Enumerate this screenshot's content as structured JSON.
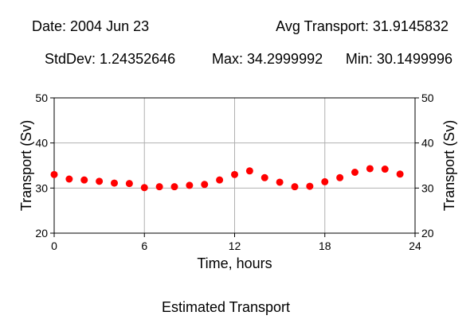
{
  "header": {
    "date": "Date: 2004 Jun 23",
    "avg": "Avg Transport: 31.9145832",
    "stddev": "StdDev: 1.24352646",
    "max": "Max: 34.2999992",
    "min": "Min: 30.1499996"
  },
  "caption": "Estimated Transport",
  "colors": {
    "points": "#ff0000",
    "grid": "#b0b0b0",
    "axes": "#000000"
  },
  "chart_data": {
    "type": "scatter",
    "title": "",
    "xlabel": "Time, hours",
    "ylabel": "Transport (Sv)",
    "ylabel_right": "Transport (Sv)",
    "xlim": [
      0,
      24
    ],
    "ylim": [
      20,
      50
    ],
    "x_ticks": [
      "0",
      "6",
      "12",
      "18",
      "24"
    ],
    "y_ticks": [
      "20",
      "30",
      "40",
      "50"
    ],
    "grid": true,
    "series": [
      {
        "x": [
          0,
          1,
          2,
          3,
          4,
          5,
          6,
          7,
          8,
          9,
          10,
          11,
          12,
          13,
          14,
          15,
          16,
          17,
          18,
          19,
          20,
          21,
          22,
          23
        ],
        "y": [
          33.0,
          32.0,
          31.8,
          31.5,
          31.1,
          31.0,
          30.1,
          30.3,
          30.3,
          30.6,
          30.8,
          31.8,
          33.0,
          33.8,
          32.3,
          31.3,
          30.3,
          30.4,
          31.4,
          32.3,
          33.5,
          34.3,
          34.2,
          33.1
        ]
      }
    ]
  }
}
